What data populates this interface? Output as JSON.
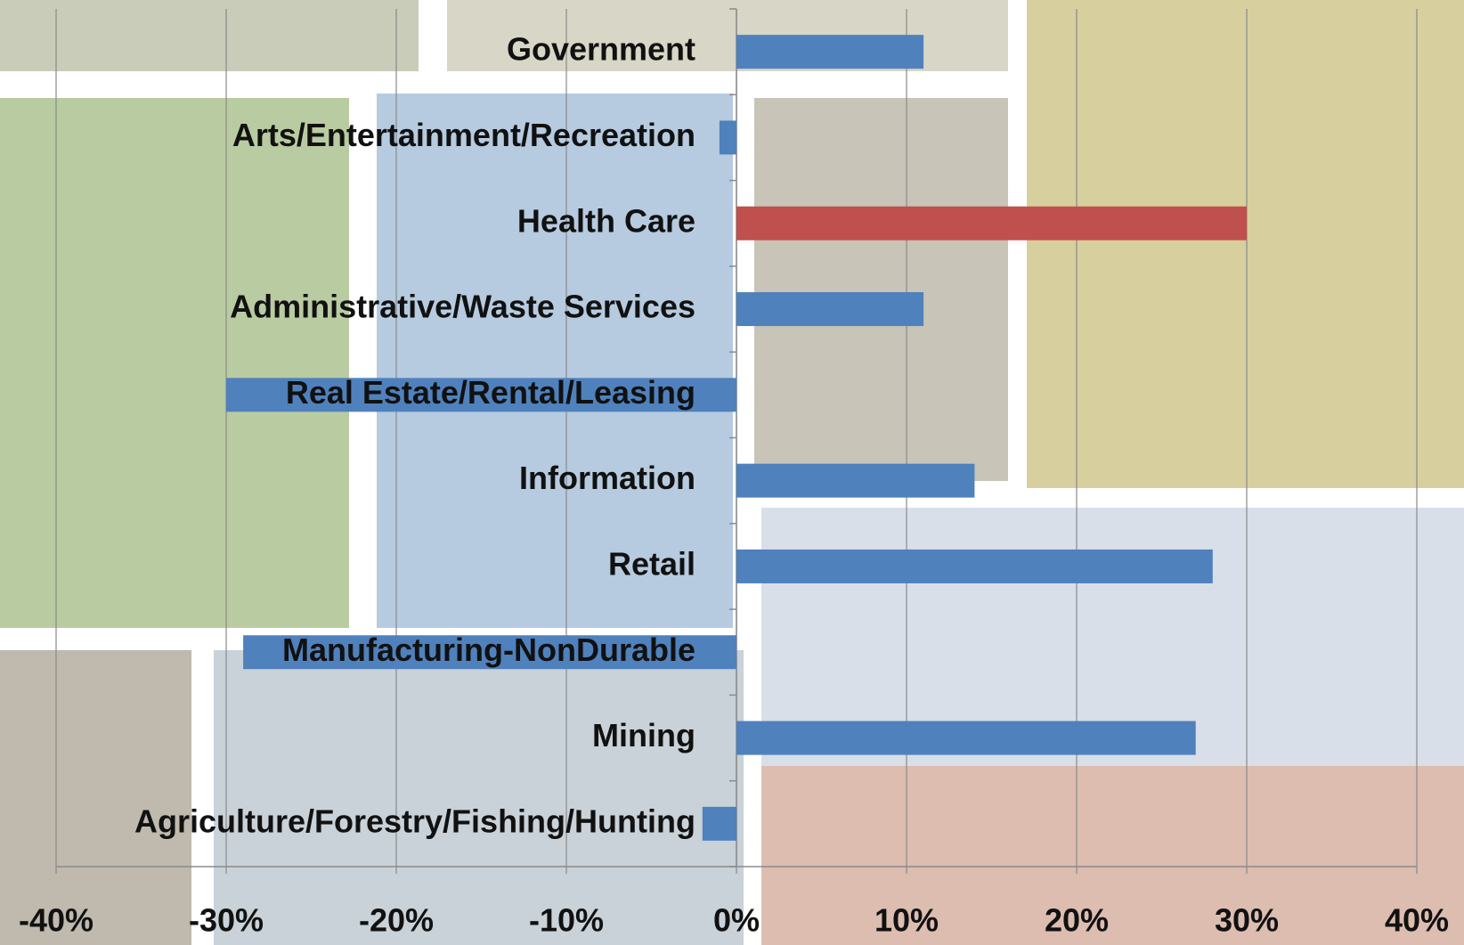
{
  "chart_data": {
    "type": "barh",
    "categories": [
      "Government",
      "Arts/Entertainment/Recreation",
      "Health Care",
      "Administrative/Waste Services",
      "Real Estate/Rental/Leasing",
      "Information",
      "Retail",
      "Manufacturing-NonDurable",
      "Mining",
      "Agriculture/Forestry/Fishing/Hunting"
    ],
    "values": [
      11,
      -1,
      30,
      11,
      -30,
      14,
      28,
      -29,
      27,
      -2
    ],
    "colors": [
      "#4f81bd",
      "#4f81bd",
      "#c0504d",
      "#4f81bd",
      "#4f81bd",
      "#4f81bd",
      "#4f81bd",
      "#4f81bd",
      "#4f81bd",
      "#4f81bd"
    ],
    "xlim": [
      -40,
      40
    ],
    "xticks": [
      {
        "value": -40,
        "label": "-40%"
      },
      {
        "value": -30,
        "label": "-30%"
      },
      {
        "value": -20,
        "label": "-20%"
      },
      {
        "value": -10,
        "label": "-10%"
      },
      {
        "value": 0,
        "label": "0%"
      },
      {
        "value": 10,
        "label": "10%"
      },
      {
        "value": 20,
        "label": "20%"
      },
      {
        "value": 30,
        "label": "30%"
      },
      {
        "value": 40,
        "label": "40%"
      }
    ],
    "grid": true
  }
}
